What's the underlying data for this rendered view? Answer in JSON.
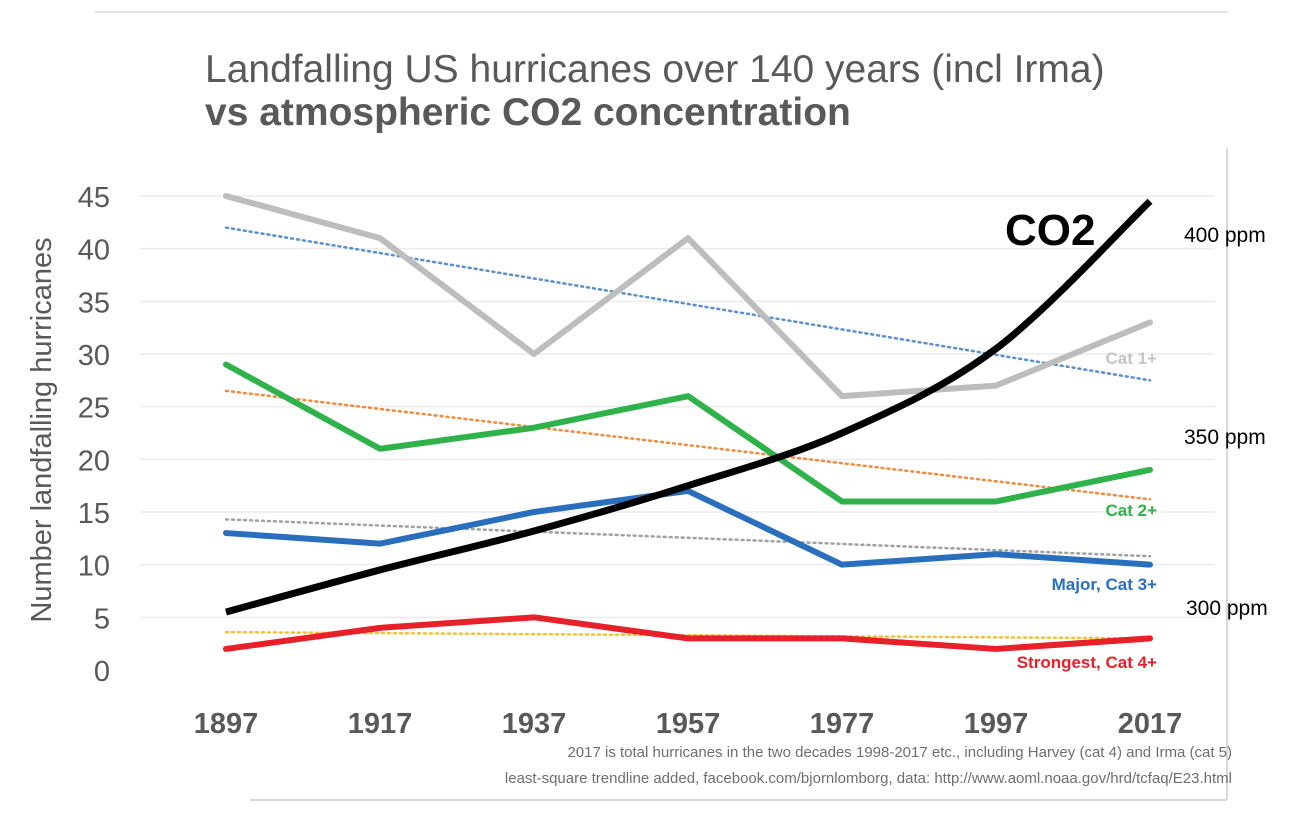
{
  "chart_data": {
    "type": "line",
    "title_line1": "Landfalling US hurricanes over 140 years (incl Irma)",
    "title_line2": "vs atmospheric CO2 concentration",
    "ylabel": "Number landfalling hurricanes",
    "x": [
      1897,
      1917,
      1937,
      1957,
      1977,
      1997,
      2017
    ],
    "x_tick_labels": [
      "1897",
      "1917",
      "1937",
      "1957",
      "1977",
      "1997",
      "2017"
    ],
    "ylim": [
      0,
      45
    ],
    "y_ticks": [
      0,
      5,
      10,
      15,
      20,
      25,
      30,
      35,
      40,
      45
    ],
    "grid": true,
    "series": [
      {
        "name": "Cat 1+",
        "color": "#bdbdbd",
        "values": [
          45,
          41,
          30,
          41,
          26,
          27,
          33
        ],
        "trend": [
          42.0,
          27.5
        ],
        "trend_color": "#5b8fd0"
      },
      {
        "name": "Cat 2+",
        "color": "#2fb24a",
        "values": [
          29,
          21,
          23,
          26,
          16,
          16,
          19
        ],
        "trend": [
          26.5,
          16.2
        ],
        "trend_color": "#f08a3c"
      },
      {
        "name": "Major, Cat 3+",
        "color": "#2a6fbd",
        "values": [
          13,
          12,
          15,
          17,
          10,
          11,
          10
        ],
        "trend": [
          14.3,
          10.8
        ],
        "trend_color": "#a0a0a0"
      },
      {
        "name": "Strongest, Cat 4+",
        "color": "#e8202a",
        "values": [
          2,
          4,
          5,
          3,
          3,
          2,
          3
        ],
        "trend": [
          3.6,
          3.0
        ],
        "trend_color": "#f5c02a"
      }
    ],
    "co2": {
      "label": "CO2",
      "color": "#000000",
      "y_values": [
        5.5,
        9.5,
        13.2,
        17.5,
        22.5,
        30.5,
        44.5
      ],
      "axis_labels": [
        "400 ppm",
        "350 ppm",
        "300 ppm"
      ]
    },
    "footnote_line1": "2017 is total hurricanes  in the two decades 1998-2017 etc., including  Harvey (cat 4) and Irma (cat 5)",
    "footnote_line2": "least-square trendline  added, facebook.com/bjornlomborg,  data: http://www.aoml.noaa.gov/hrd/tcfaq/E23.html"
  }
}
